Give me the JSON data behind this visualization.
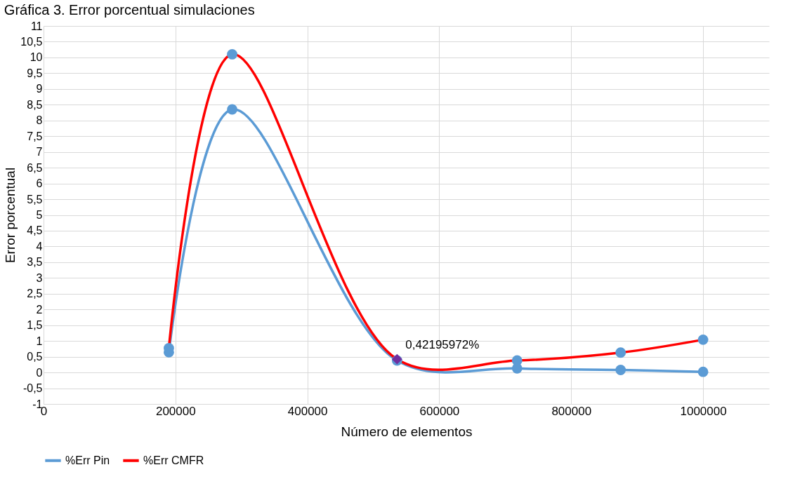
{
  "chart_data": {
    "type": "line",
    "title": "Gráfica 3. Error porcentual simulaciones",
    "xlabel": "Número de elementos",
    "ylabel": "Error porcentual",
    "x": [
      190000,
      286000,
      536000,
      718000,
      875000,
      1000000
    ],
    "series": [
      {
        "name": "%Err Pin",
        "color": "#5b9bd5",
        "values": [
          0.64,
          8.35,
          0.38,
          0.13,
          0.08,
          0.02
        ]
      },
      {
        "name": "%Err CMFR",
        "color": "#ff0000",
        "colors": [
          "#5b9bd5",
          "#5b9bd5",
          "#7030a0",
          "#5b9bd5",
          "#5b9bd5",
          "#5b9bd5"
        ],
        "values": [
          0.77,
          10.1,
          0.42195972,
          0.38,
          0.63,
          1.04
        ],
        "value_labels": [
          null,
          null,
          "0,42195972%",
          null,
          null,
          null
        ]
      }
    ],
    "xlim": [
      0,
      1100000
    ],
    "xticks": [
      0,
      200000,
      400000,
      600000,
      800000,
      1000000
    ],
    "ylim": [
      -1,
      11
    ],
    "yticks": [
      -1,
      {
        "value": -0.5,
        "label": "-0,5"
      },
      0,
      {
        "value": 0.5,
        "label": "0,5"
      },
      1,
      {
        "value": 1.5,
        "label": "1,5"
      },
      2,
      {
        "value": 2.5,
        "label": "2,5"
      },
      3,
      {
        "value": 3.5,
        "label": "3,5"
      },
      4,
      {
        "value": 4.5,
        "label": "4,5"
      },
      5,
      {
        "value": 5.5,
        "label": "5,5"
      },
      6,
      {
        "value": 6.5,
        "label": "6,5"
      },
      7,
      {
        "value": 7.5,
        "label": "7,5"
      },
      8,
      {
        "value": 8.5,
        "label": "8,5"
      },
      9,
      {
        "value": 9.5,
        "label": "9,5"
      },
      10,
      {
        "value": 10.5,
        "label": "10,5"
      },
      11
    ],
    "grid": true,
    "legend": "bottom",
    "marker": "circle",
    "line_style": "solid"
  }
}
